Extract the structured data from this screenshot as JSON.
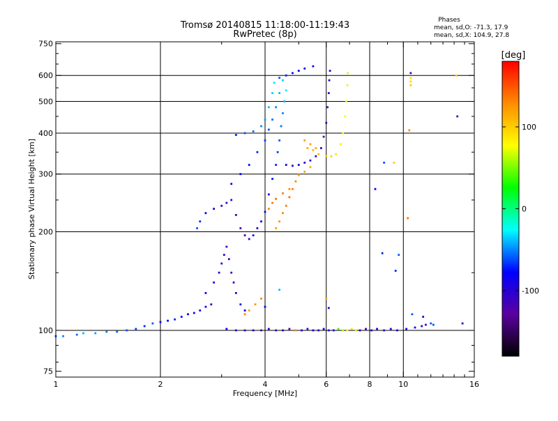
{
  "chart_data": {
    "type": "scatter",
    "title": "Tromsø 20140815 11:18:00-11:19:43",
    "subtitle": "RwPretec (8p)",
    "stats_title": "Phases",
    "stats_lines": [
      "mean, sd,O: -71.3, 17.9",
      "mean, sd,X: 104.9, 27.8"
    ],
    "xlabel": "Frequency [MHz]",
    "ylabel": "Stationary phase Virtual Height [km]",
    "x_scale": "log",
    "y_scale": "log",
    "xlim": [
      1,
      16
    ],
    "ylim": [
      72,
      760
    ],
    "x_ticks": [
      {
        "v": 1,
        "label": "1"
      },
      {
        "v": 2,
        "label": "2"
      },
      {
        "v": 4,
        "label": "4"
      },
      {
        "v": 6,
        "label": "6"
      },
      {
        "v": 8,
        "label": "8"
      },
      {
        "v": 10,
        "label": "10"
      },
      {
        "v": 16,
        "label": "16"
      }
    ],
    "x_minor_ticks": [
      3,
      5,
      7,
      9,
      11,
      12,
      13,
      14,
      15
    ],
    "x_grid": [
      2,
      4,
      6,
      8,
      10
    ],
    "y_ticks": [
      {
        "v": 75,
        "label": "75"
      },
      {
        "v": 100,
        "label": "100"
      },
      {
        "v": 200,
        "label": "200"
      },
      {
        "v": 300,
        "label": "300"
      },
      {
        "v": 400,
        "label": "400"
      },
      {
        "v": 500,
        "label": "500"
      },
      {
        "v": 600,
        "label": "600"
      },
      {
        "v": 750,
        "label": "750"
      }
    ],
    "y_minor_ticks": [
      80,
      90,
      150,
      250,
      350,
      450,
      550,
      650,
      700
    ],
    "y_grid": [
      100,
      200,
      300,
      400,
      500,
      600
    ],
    "grid": true,
    "colorbar": {
      "label": "[deg]",
      "range": [
        -180,
        180
      ],
      "ticks": [
        {
          "v": 100,
          "label": "100"
        },
        {
          "v": 0,
          "label": "0"
        },
        {
          "v": -100,
          "label": "-100"
        }
      ],
      "colors": [
        "#000000",
        "#5a00a0",
        "#0000ff",
        "#00ffff",
        "#00ff00",
        "#ffff00",
        "#ff8c00",
        "#ff0000"
      ]
    },
    "series": [
      {
        "points": [
          [
            1.0,
            96,
            -60
          ],
          [
            1.05,
            96,
            -50
          ],
          [
            1.15,
            97,
            -55
          ],
          [
            1.2,
            98,
            -40
          ],
          [
            1.3,
            98,
            -45
          ],
          [
            1.4,
            99,
            -50
          ],
          [
            1.5,
            99,
            -55
          ],
          [
            1.6,
            100,
            -60
          ],
          [
            1.7,
            101,
            -65
          ],
          [
            1.8,
            103,
            -70
          ],
          [
            1.9,
            105,
            -60
          ],
          [
            2.0,
            106,
            -75
          ],
          [
            2.1,
            107,
            -80
          ],
          [
            2.2,
            108,
            -70
          ],
          [
            2.3,
            110,
            -85
          ],
          [
            2.4,
            112,
            -80
          ],
          [
            2.5,
            113,
            -90
          ],
          [
            2.6,
            115,
            -85
          ],
          [
            2.7,
            118,
            -95
          ],
          [
            2.8,
            120,
            -100
          ]
        ]
      },
      {
        "points": [
          [
            2.7,
            130,
            -90
          ],
          [
            2.85,
            140,
            -95
          ],
          [
            2.95,
            150,
            -100
          ],
          [
            3.0,
            160,
            -105
          ],
          [
            3.05,
            170,
            -110
          ],
          [
            3.1,
            180,
            -110
          ],
          [
            3.15,
            165,
            -120
          ],
          [
            3.2,
            150,
            -115
          ],
          [
            3.25,
            140,
            -110
          ],
          [
            3.3,
            130,
            -100
          ],
          [
            3.4,
            120,
            -95
          ],
          [
            3.5,
            115,
            -90
          ]
        ]
      },
      {
        "points": [
          [
            2.55,
            205,
            -60
          ],
          [
            2.6,
            215,
            -70
          ],
          [
            2.7,
            228,
            -80
          ],
          [
            2.85,
            235,
            -95
          ],
          [
            3.0,
            240,
            -100
          ],
          [
            3.1,
            245,
            -105
          ],
          [
            3.2,
            250,
            -110
          ],
          [
            3.3,
            225,
            -115
          ],
          [
            3.4,
            205,
            -120
          ],
          [
            3.5,
            195,
            -115
          ],
          [
            3.6,
            190,
            -110
          ],
          [
            3.7,
            195,
            -105
          ],
          [
            3.8,
            205,
            -100
          ],
          [
            3.9,
            215,
            -95
          ],
          [
            4.0,
            230,
            -90
          ],
          [
            4.1,
            260,
            -85
          ],
          [
            4.2,
            290,
            -75
          ],
          [
            4.3,
            320,
            -70
          ],
          [
            4.35,
            350,
            -65
          ],
          [
            4.4,
            380,
            -60
          ],
          [
            4.45,
            420,
            -55
          ],
          [
            4.5,
            460,
            -50
          ],
          [
            4.55,
            500,
            -40
          ],
          [
            4.6,
            540,
            -30
          ]
        ]
      },
      {
        "points": [
          [
            3.2,
            280,
            -90
          ],
          [
            3.4,
            300,
            -80
          ],
          [
            3.6,
            320,
            -75
          ],
          [
            3.8,
            350,
            -70
          ],
          [
            4.0,
            380,
            -65
          ],
          [
            4.1,
            410,
            -60
          ],
          [
            4.2,
            440,
            -55
          ],
          [
            4.3,
            480,
            -50
          ],
          [
            4.4,
            530,
            -40
          ],
          [
            4.5,
            580,
            -35
          ]
        ]
      },
      {
        "points": [
          [
            3.3,
            395,
            -70
          ],
          [
            3.5,
            400,
            -60
          ],
          [
            3.7,
            405,
            -55
          ],
          [
            3.9,
            420,
            -50
          ],
          [
            4.0,
            440,
            -45
          ],
          [
            4.1,
            480,
            -40
          ],
          [
            4.2,
            530,
            -35
          ],
          [
            4.25,
            570,
            -30
          ]
        ]
      },
      {
        "points": [
          [
            4.4,
            590,
            -60
          ],
          [
            4.6,
            600,
            -70
          ],
          [
            4.8,
            610,
            -75
          ],
          [
            5.0,
            620,
            -80
          ],
          [
            5.2,
            630,
            -85
          ],
          [
            5.5,
            640,
            -90
          ]
        ]
      },
      {
        "points": [
          [
            4.6,
            320,
            -85
          ],
          [
            4.8,
            318,
            -90
          ],
          [
            5.0,
            320,
            -95
          ],
          [
            5.2,
            325,
            -100
          ],
          [
            5.4,
            330,
            -105
          ],
          [
            5.6,
            340,
            -110
          ],
          [
            5.8,
            360,
            -115
          ],
          [
            5.9,
            390,
            -120
          ],
          [
            6.0,
            430,
            -115
          ],
          [
            6.05,
            480,
            -120
          ],
          [
            6.1,
            530,
            -110
          ],
          [
            6.12,
            580,
            -105
          ],
          [
            6.15,
            620,
            -100
          ]
        ]
      },
      {
        "points": [
          [
            4.3,
            205,
            120
          ],
          [
            4.4,
            215,
            125
          ],
          [
            4.5,
            228,
            130
          ],
          [
            4.6,
            240,
            135
          ],
          [
            4.7,
            255,
            140
          ],
          [
            4.8,
            270,
            135
          ],
          [
            4.9,
            285,
            130
          ],
          [
            5.0,
            298,
            125
          ],
          [
            5.2,
            305,
            120
          ],
          [
            5.4,
            315,
            115
          ]
        ]
      },
      {
        "points": [
          [
            4.1,
            235,
            130
          ],
          [
            4.2,
            245,
            135
          ],
          [
            4.3,
            252,
            140
          ],
          [
            4.5,
            262,
            135
          ],
          [
            4.7,
            270,
            130
          ]
        ]
      },
      {
        "points": [
          [
            5.3,
            360,
            115
          ],
          [
            5.5,
            355,
            110
          ],
          [
            5.7,
            345,
            105
          ],
          [
            6.0,
            340,
            100
          ],
          [
            6.2,
            340,
            95
          ],
          [
            6.4,
            345,
            90
          ],
          [
            6.6,
            370,
            85
          ],
          [
            6.7,
            400,
            80
          ],
          [
            6.8,
            450,
            75
          ],
          [
            6.85,
            500,
            72
          ],
          [
            6.9,
            560,
            70
          ],
          [
            6.92,
            610,
            68
          ]
        ]
      },
      {
        "points": [
          [
            5.2,
            380,
            120
          ],
          [
            5.4,
            370,
            118
          ],
          [
            5.6,
            360,
            115
          ]
        ]
      },
      {
        "points": [
          [
            3.1,
            101,
            -80
          ],
          [
            3.3,
            100,
            -100
          ],
          [
            3.5,
            100,
            -110
          ],
          [
            3.7,
            100,
            -90
          ],
          [
            3.9,
            100,
            -120
          ],
          [
            4.1,
            101,
            -100
          ],
          [
            4.3,
            100,
            -110
          ],
          [
            4.5,
            100,
            -95
          ],
          [
            4.7,
            101,
            -130
          ],
          [
            4.9,
            100,
            130
          ],
          [
            5.1,
            100,
            -100
          ],
          [
            5.3,
            101,
            -110
          ],
          [
            5.5,
            100,
            -90
          ],
          [
            5.7,
            100,
            -100
          ],
          [
            5.9,
            101,
            -80
          ],
          [
            6.1,
            100,
            -95
          ],
          [
            6.3,
            100,
            -100
          ],
          [
            6.5,
            101,
            40
          ],
          [
            6.7,
            100,
            60
          ],
          [
            6.9,
            100,
            80
          ],
          [
            7.1,
            101,
            70
          ],
          [
            7.3,
            100,
            90
          ],
          [
            7.5,
            100,
            -100
          ],
          [
            7.8,
            101,
            -110
          ],
          [
            8.1,
            100,
            -90
          ],
          [
            8.4,
            101,
            -100
          ],
          [
            8.8,
            100,
            -110
          ],
          [
            9.2,
            101,
            -95
          ],
          [
            9.6,
            100,
            -100
          ],
          [
            10.2,
            101,
            -80
          ],
          [
            10.8,
            102,
            -90
          ],
          [
            11.3,
            103,
            -100
          ]
        ]
      },
      {
        "points": [
          [
            3.6,
            115,
            120
          ],
          [
            3.75,
            120,
            125
          ],
          [
            3.9,
            125,
            130
          ],
          [
            3.5,
            112,
            130
          ]
        ]
      },
      {
        "points": [
          [
            10.5,
            610,
            -110
          ],
          [
            10.5,
            590,
            90
          ],
          [
            10.5,
            575,
            95
          ],
          [
            10.5,
            560,
            100
          ],
          [
            10.4,
            408,
            130
          ],
          [
            10.3,
            220,
            140
          ],
          [
            9.4,
            325,
            100
          ],
          [
            8.8,
            325,
            -60
          ],
          [
            8.3,
            270,
            -80
          ],
          [
            8.7,
            172,
            -70
          ],
          [
            9.7,
            170,
            -60
          ],
          [
            9.5,
            152,
            -70
          ],
          [
            10.6,
            112,
            -60
          ],
          [
            11.4,
            110,
            -100
          ],
          [
            11.6,
            104,
            -110
          ],
          [
            12.0,
            105,
            -60
          ],
          [
            14.2,
            600,
            100
          ],
          [
            14.3,
            450,
            -120
          ],
          [
            14.8,
            105,
            -110
          ],
          [
            12.2,
            104,
            -60
          ],
          [
            4.4,
            133,
            -40
          ],
          [
            6.0,
            125,
            120
          ],
          [
            6.1,
            117,
            -100
          ],
          [
            4.0,
            118,
            -90
          ]
        ]
      }
    ]
  }
}
